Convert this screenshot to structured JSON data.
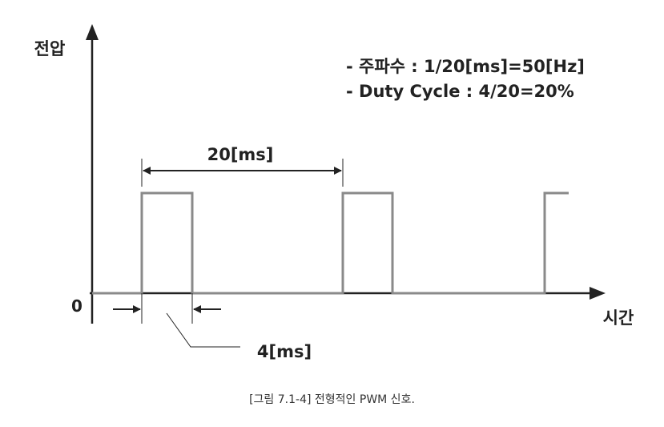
{
  "y_axis_label": "전압",
  "x_axis_label": "시간",
  "origin_label": "0",
  "info": {
    "frequency": "- 주파수 : 1/20[ms]=50[Hz]",
    "duty_cycle": "- Duty Cycle : 4/20=20%"
  },
  "period_label": "20[ms]",
  "pulse_width_label": "4[ms]",
  "caption": "[그림 7.1-4] 전형적인 PWM 신호.",
  "colors": {
    "signal": "#8a8a8a",
    "axis": "#222222",
    "text": "#222222"
  },
  "chart_data": {
    "type": "line",
    "signal": "PWM",
    "period_ms": 20,
    "pulse_width_ms": 4,
    "duty_cycle_percent": 20,
    "frequency_hz": 50,
    "pulse_start_times_ms": [
      0,
      20,
      40
    ],
    "levels": [
      "low",
      "high"
    ]
  }
}
